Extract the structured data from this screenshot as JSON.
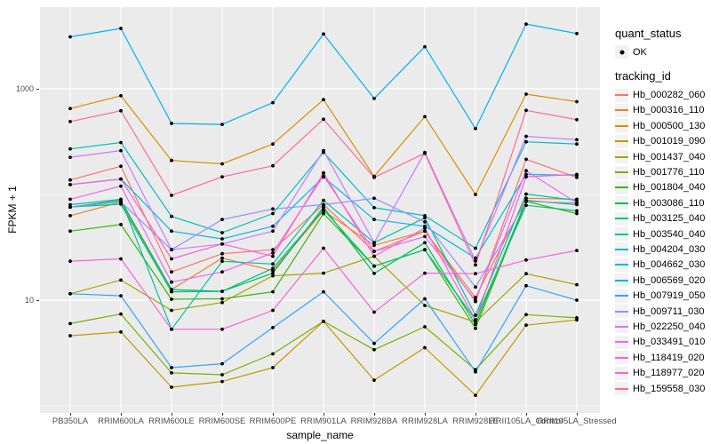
{
  "figure": {
    "background": "#FFFFFF",
    "panel_background": "#EBEBEB",
    "grid_color": "#FFFFFF",
    "point_color": "#000000",
    "axis_text_color": "#4D4D4D"
  },
  "legend": {
    "quant_status": {
      "title": "quant_status",
      "items": [
        {
          "label": "OK",
          "symbol": "point",
          "color": "#000000"
        }
      ]
    },
    "tracking_id": {
      "title": "tracking_id"
    }
  },
  "chart_data": {
    "type": "line",
    "title": "",
    "xlabel": "sample_name",
    "ylabel": "FPKM + 1",
    "y_scale": "log10",
    "ylim": [
      0.86,
      5900
    ],
    "y_major_ticks": [
      10,
      1000
    ],
    "y_major_tick_labels": [
      "10",
      "1000"
    ],
    "y_minor_ticks": [
      1,
      100
    ],
    "grid": true,
    "legend_position": "right",
    "x_categories": [
      "PB350LA",
      "RRIM600LA",
      "RRIM600LE",
      "RRIM600SE",
      "RRIM600PE",
      "RRIM901LA",
      "RRIM928BA",
      "RRIM928LA",
      "RRIM928LE",
      "RRII105LA_Control",
      "RRII105LA_Stressed"
    ],
    "quant_status_all_points": "OK",
    "series": [
      {
        "name": "Hb_000282_060",
        "color": "#F8766D",
        "values": [
          137,
          185,
          18.5,
          27.5,
          30,
          80,
          29,
          45,
          9.7,
          215,
          145
        ]
      },
      {
        "name": "Hb_000316_110",
        "color": "#EA8331",
        "values": [
          63,
          85,
          12.6,
          25,
          19,
          70,
          33,
          45,
          10.6,
          92,
          90
        ]
      },
      {
        "name": "Hb_000500_130",
        "color": "#D89000",
        "values": [
          650,
          860,
          210,
          195,
          300,
          790,
          148,
          545,
          100,
          890,
          755
        ]
      },
      {
        "name": "Hb_001019_090",
        "color": "#C09B00",
        "values": [
          4.6,
          5,
          1.5,
          1.7,
          2.3,
          6.3,
          1.75,
          3.55,
          1.26,
          5.8,
          6.5
        ]
      },
      {
        "name": "Hb_001437_040",
        "color": "#A3A500",
        "values": [
          11.5,
          15.5,
          8,
          9.5,
          17,
          18,
          26,
          8.9,
          6.2,
          17.8,
          14
        ]
      },
      {
        "name": "Hb_001776_110",
        "color": "#7CAE00",
        "values": [
          6,
          7.4,
          2.05,
          1.97,
          3.1,
          6.3,
          3.4,
          5.6,
          2.2,
          7.3,
          6.8
        ]
      },
      {
        "name": "Hb_001804_040",
        "color": "#39B600",
        "values": [
          45,
          52,
          10.2,
          10.3,
          12,
          66,
          21,
          30,
          5.4,
          86,
          66
        ]
      },
      {
        "name": "Hb_003086_110",
        "color": "#00BB4E",
        "values": [
          76,
          88,
          12.6,
          12.1,
          18,
          76,
          17.9,
          35,
          5.9,
          88,
          80
        ]
      },
      {
        "name": "Hb_003125_040",
        "color": "#00BF7D",
        "values": [
          76,
          81,
          12,
          12.1,
          20,
          72,
          21,
          30,
          6.5,
          79,
          70
        ]
      },
      {
        "name": "Hb_003540_040",
        "color": "#00C1A3",
        "values": [
          80,
          90,
          5.3,
          23.3,
          22,
          88,
          35,
          60,
          7.2,
          101,
          88
        ]
      },
      {
        "name": "Hb_004204_030",
        "color": "#00BFC4",
        "values": [
          270,
          310,
          62,
          43.5,
          66,
          250,
          75,
          63,
          31,
          315,
          300
        ]
      },
      {
        "name": "Hb_004662_030",
        "color": "#00BAE0",
        "values": [
          124,
          140,
          45,
          38,
          50,
          146,
          58,
          50,
          25,
          155,
          152
        ]
      },
      {
        "name": "Hb_006569_020",
        "color": "#00B0F6",
        "values": [
          3100,
          3730,
          470,
          460,
          740,
          3300,
          810,
          2500,
          420,
          4100,
          3330
        ]
      },
      {
        "name": "Hb_007919_050",
        "color": "#35A2FF",
        "values": [
          11.5,
          11,
          2.3,
          2.5,
          5.5,
          12,
          3.9,
          10.3,
          2.1,
          13.7,
          10
        ]
      },
      {
        "name": "Hb_009711_030",
        "color": "#9590FF",
        "values": [
          76,
          85,
          30,
          58,
          73,
          80,
          92,
          55,
          13.3,
          86,
          83
        ]
      },
      {
        "name": "Hb_022250_040",
        "color": "#C77CFF",
        "values": [
          225,
          260,
          30,
          34,
          45,
          260,
          35,
          250,
          23.5,
          355,
          330
        ]
      },
      {
        "name": "Hb_033491_010",
        "color": "#E76BF3",
        "values": [
          90,
          120,
          14.8,
          18.5,
          28,
          150,
          29,
          40,
          10,
          168,
          83
        ]
      },
      {
        "name": "Hb_118419_020",
        "color": "#FA62DB",
        "values": [
          23.4,
          24.6,
          5.3,
          5.3,
          8,
          31,
          7.7,
          18,
          17.8,
          24,
          29.5
        ]
      },
      {
        "name": "Hb_118977_020",
        "color": "#FF61CC",
        "values": [
          124,
          140,
          24.6,
          34,
          26,
          160,
          26,
          48,
          6.5,
          147,
          155
        ]
      },
      {
        "name": "Hb_159558_030",
        "color": "#FF6A98",
        "values": [
          490,
          620,
          98,
          147,
          187,
          515,
          145,
          245,
          21.5,
          625,
          510
        ]
      }
    ]
  }
}
